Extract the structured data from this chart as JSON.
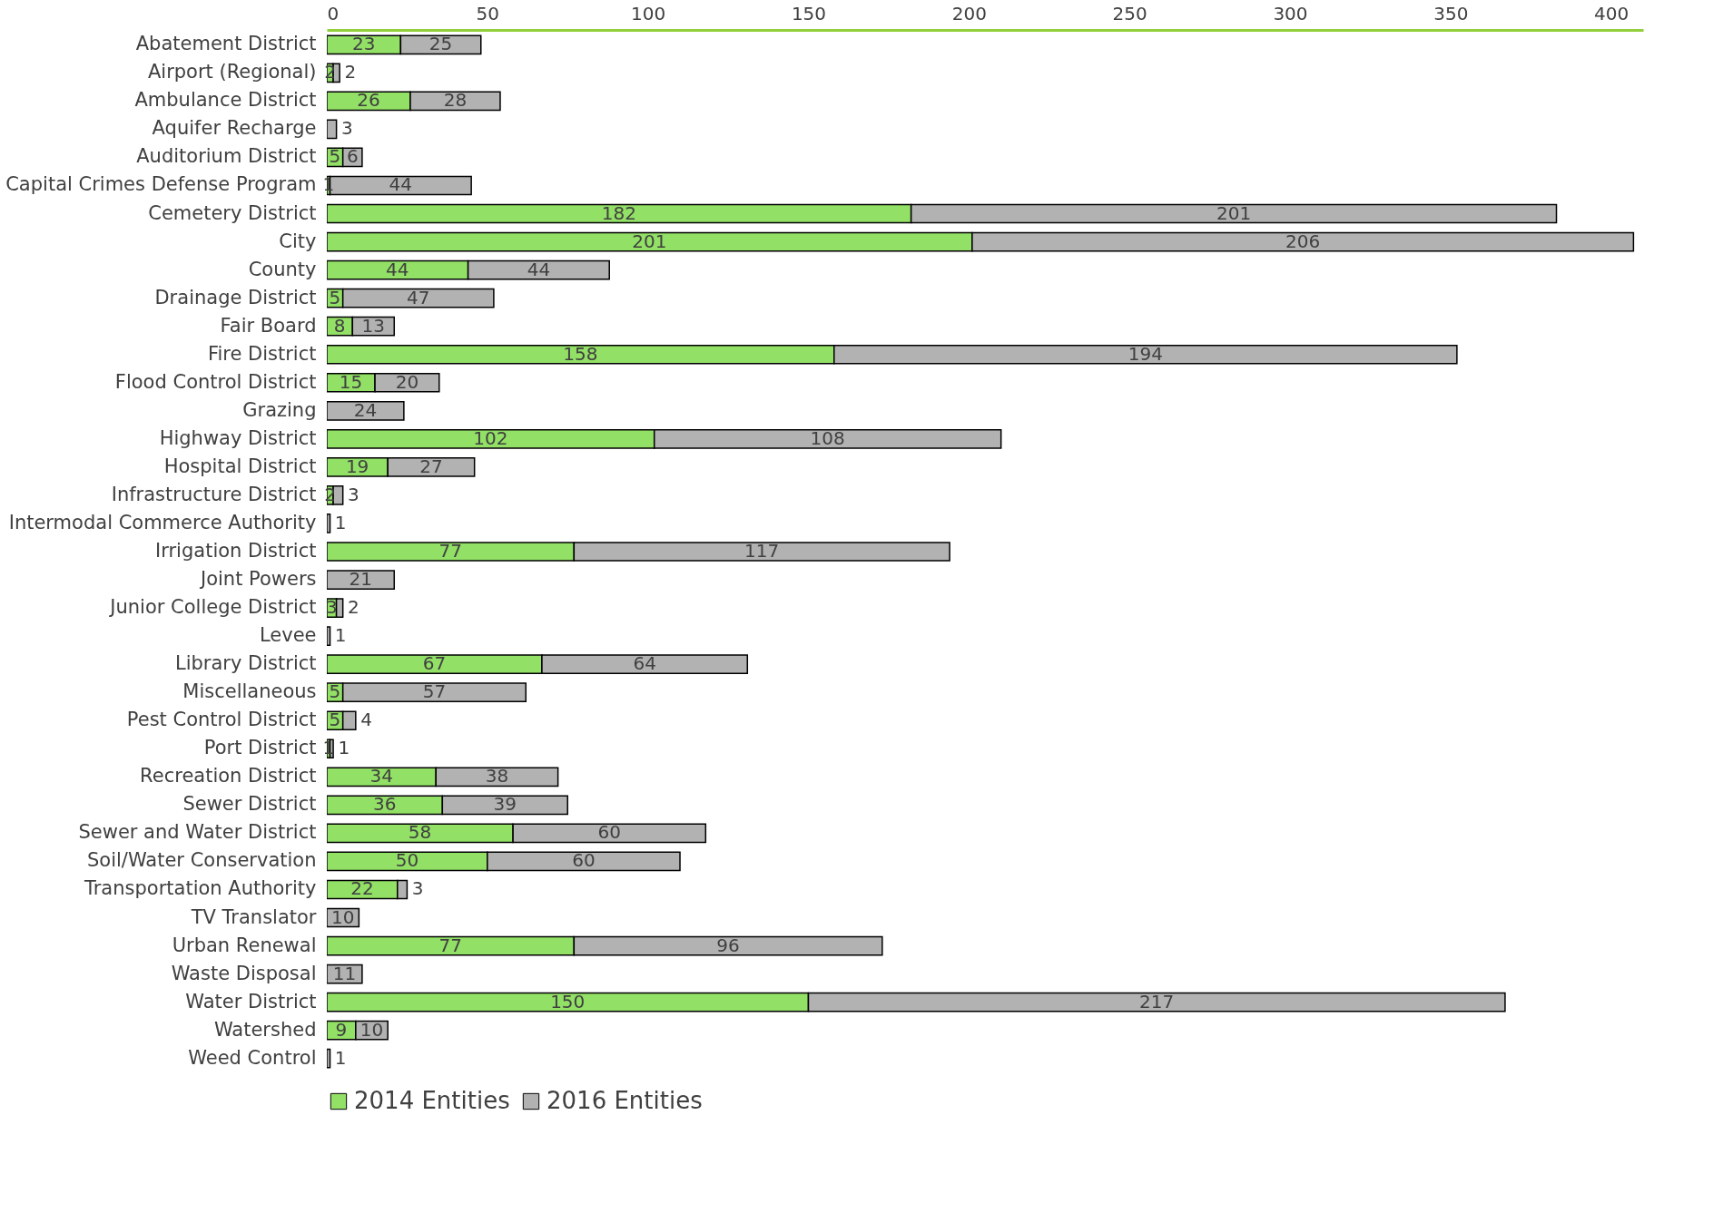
{
  "chart_data": {
    "type": "bar",
    "orientation": "horizontal",
    "stacked": true,
    "data_labels": true,
    "legend": "bottom",
    "grid": false,
    "categories": [
      "Abatement District",
      "Airport (Regional)",
      "Ambulance District",
      "Aquifer Recharge",
      "Auditorium District",
      "Capital Crimes Defense Program",
      "Cemetery District",
      "City",
      "County",
      "Drainage District",
      "Fair Board",
      "Fire District",
      "Flood Control District",
      "Grazing",
      "Highway District",
      "Hospital District",
      "Infrastructure District",
      "Intermodal Commerce Authority",
      "Irrigation District",
      "Joint Powers",
      "Junior College District",
      "Levee",
      "Library District",
      "Miscellaneous",
      "Pest Control District",
      "Port District",
      "Recreation District",
      "Sewer District",
      "Sewer and Water District",
      "Soil/Water Conservation",
      "Transportation Authority",
      "TV Translator",
      "Urban Renewal",
      "Waste Disposal",
      "Water District",
      "Watershed",
      "Weed Control"
    ],
    "series": [
      {
        "name": "2014 Entities",
        "color": "#92e066",
        "values": [
          23,
          2,
          26,
          null,
          5,
          1,
          182,
          201,
          44,
          5,
          8,
          158,
          15,
          null,
          102,
          19,
          2,
          null,
          77,
          null,
          3,
          null,
          67,
          5,
          5,
          1,
          34,
          36,
          58,
          50,
          22,
          null,
          77,
          null,
          150,
          9,
          null
        ]
      },
      {
        "name": "2016 Entities",
        "color": "#b2b2b2",
        "values": [
          25,
          2,
          28,
          3,
          6,
          44,
          201,
          206,
          44,
          47,
          13,
          194,
          20,
          24,
          108,
          27,
          3,
          1,
          117,
          21,
          2,
          1,
          64,
          57,
          4,
          1,
          38,
          39,
          60,
          60,
          3,
          10,
          96,
          11,
          217,
          10,
          1
        ]
      }
    ],
    "xlim": [
      0,
      410
    ],
    "xticks": [
      0,
      50,
      100,
      150,
      200,
      250,
      300,
      350,
      400
    ]
  }
}
